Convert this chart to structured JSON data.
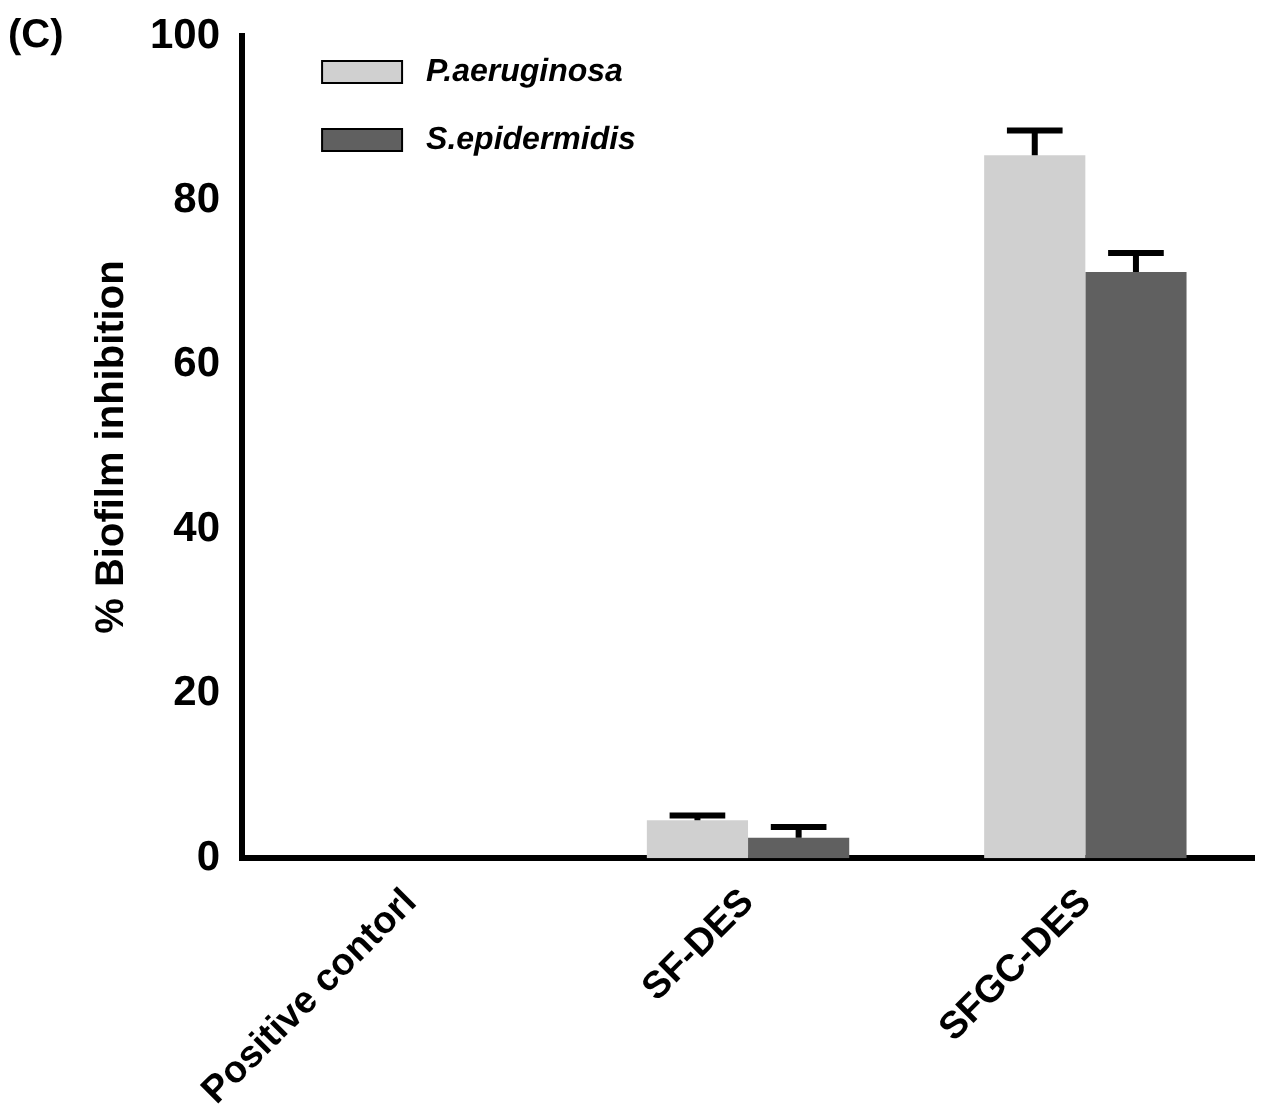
{
  "chart_data": {
    "type": "bar",
    "title": "(C)",
    "ylabel": "% Biofilm inhibition",
    "categories": [
      "Positive contorl",
      "SF-DES",
      "SFGC-DES"
    ],
    "series": [
      {
        "name": "P.aeruginosa",
        "color": "#d0d0d0",
        "values": [
          0,
          4.6,
          85.5
        ],
        "errors": [
          null,
          [
            4.6,
            5.2
          ],
          [
            85.5,
            88.5
          ]
        ]
      },
      {
        "name": "S.epidermidis",
        "color": "#606060",
        "values": [
          0,
          2.5,
          71.3
        ],
        "errors": [
          null,
          [
            2.5,
            3.8
          ],
          [
            71.3,
            73.6
          ]
        ]
      }
    ],
    "ylim": [
      0,
      100
    ],
    "yticks": [
      0,
      20,
      40,
      60,
      80,
      100
    ],
    "grid": false,
    "legend": "top left"
  }
}
